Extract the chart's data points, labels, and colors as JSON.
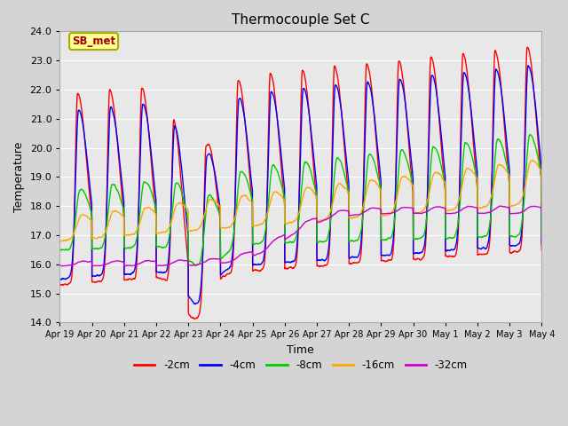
{
  "title": "Thermocouple Set C",
  "xlabel": "Time",
  "ylabel": "Temperature",
  "ylim": [
    14.0,
    24.0
  ],
  "yticks": [
    14.0,
    15.0,
    16.0,
    17.0,
    18.0,
    19.0,
    20.0,
    21.0,
    22.0,
    23.0,
    24.0
  ],
  "xtick_labels": [
    "Apr 19",
    "Apr 20",
    "Apr 21",
    "Apr 22",
    "Apr 23",
    "Apr 24",
    "Apr 25",
    "Apr 26",
    "Apr 27",
    "Apr 28",
    "Apr 29",
    "Apr 30",
    "May 1",
    "May 2",
    "May 3",
    "May 4"
  ],
  "series_colors": [
    "#ff0000",
    "#0000ff",
    "#00cc00",
    "#ffa500",
    "#cc00cc"
  ],
  "series_labels": [
    "-2cm",
    "-4cm",
    "-8cm",
    "-16cm",
    "-32cm"
  ],
  "fig_bg_color": "#d4d4d4",
  "plot_bg_color": "#e8e8e8",
  "grid_color": "#ffffff",
  "annotation_text": "SB_met",
  "annotation_color": "#aa0000",
  "annotation_bg": "#ffff99",
  "annotation_border": "#aaaa00",
  "n_days": 15,
  "n_points_per_day": 144
}
